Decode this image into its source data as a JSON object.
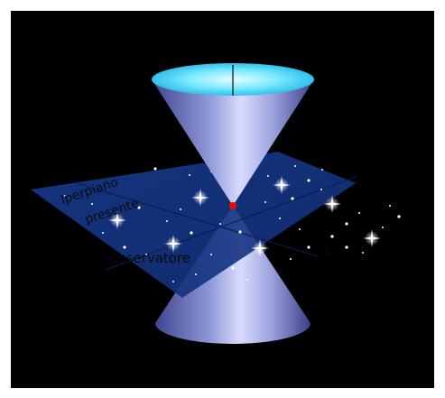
{
  "diagram": {
    "labels": {
      "hyperplane": "Iperpiano",
      "present": "presente",
      "observer": "Osservatore",
      "ray_label": "E"
    },
    "colors": {
      "background": "#000000",
      "plane": "#1b3f96",
      "cone": "#a9b0e8",
      "cone_rim": "#4fdcff",
      "observer_point": "#ff0000",
      "stars": "#ffffff"
    }
  }
}
